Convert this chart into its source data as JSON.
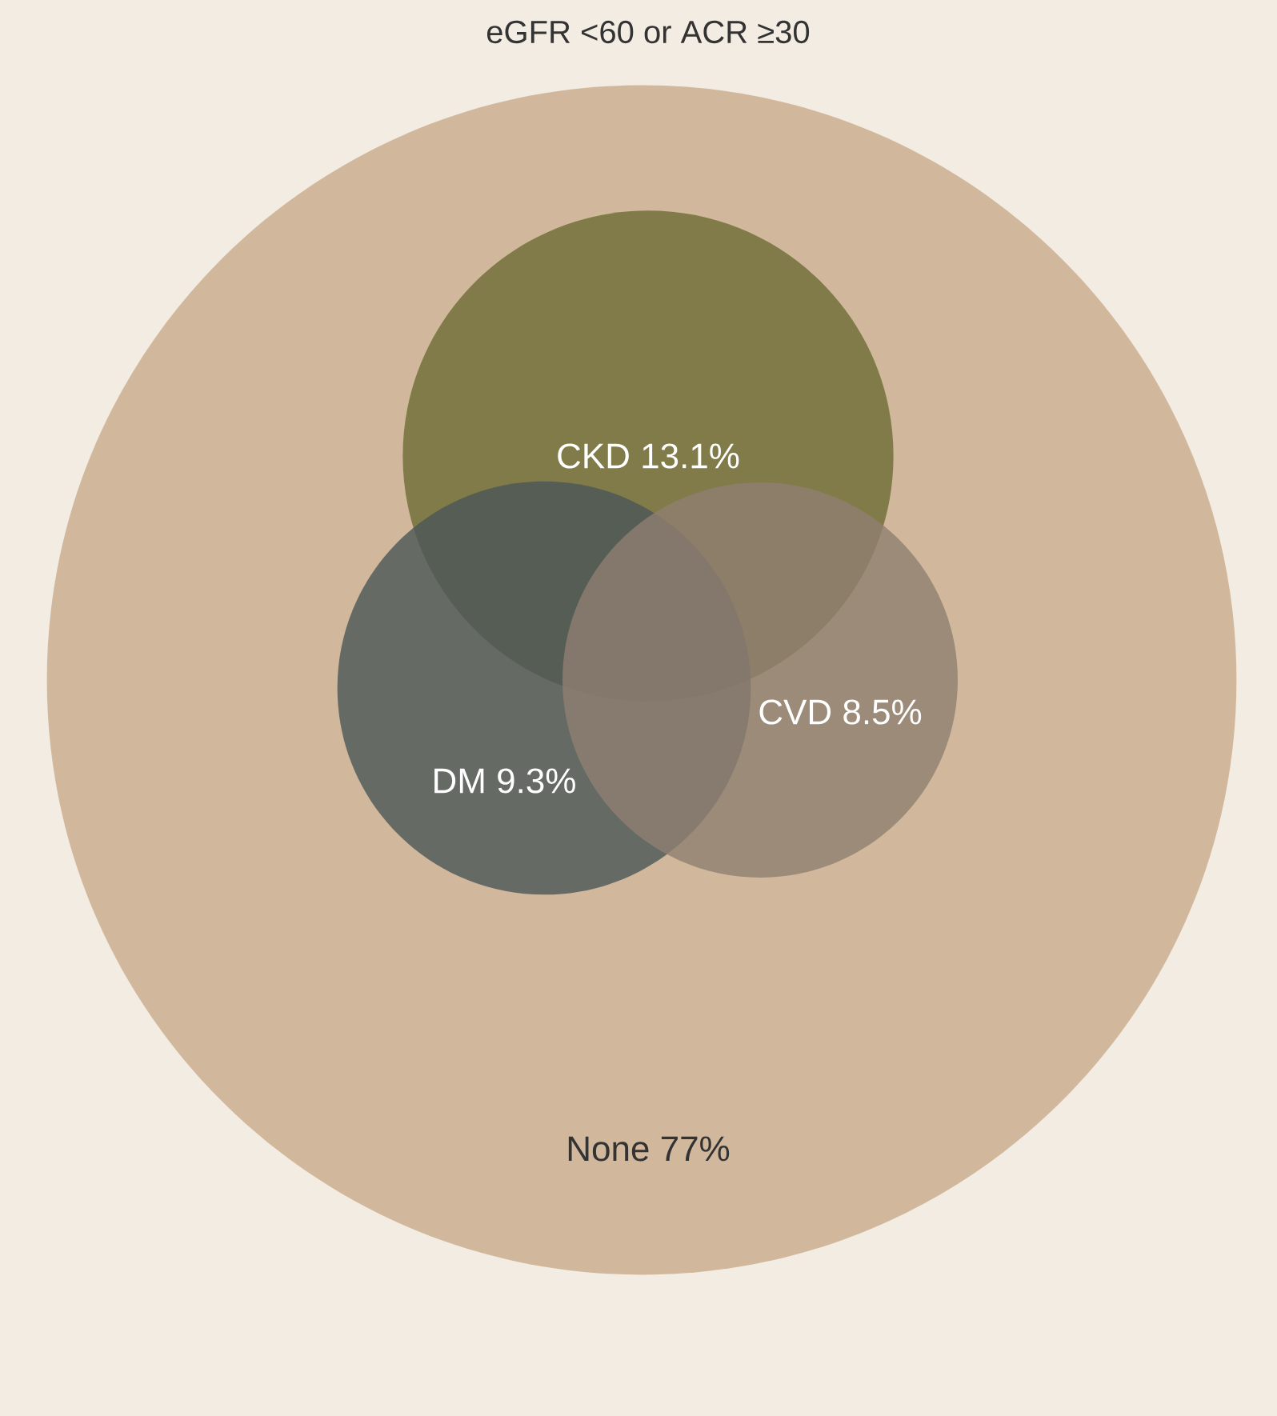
{
  "chart_data": {
    "type": "other",
    "title": "eGFR <60 or ACR ≥30",
    "categories": [
      "CKD",
      "DM",
      "CVD",
      "None"
    ],
    "values": [
      13.1,
      9.3,
      8.5,
      77
    ],
    "value_labels": [
      "13.1%",
      "9.3%",
      "8.5%",
      "77%"
    ],
    "colors": [
      "#6b6b34",
      "#4a5658",
      "#8e8070",
      "#d1b89c"
    ]
  }
}
